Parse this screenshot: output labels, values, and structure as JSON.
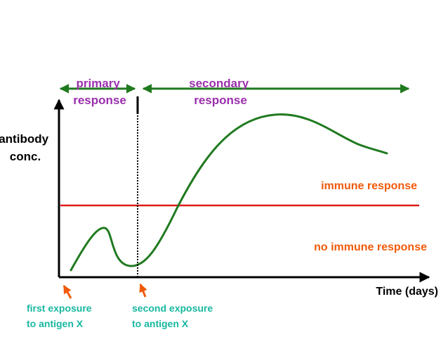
{
  "colors": {
    "background": "#ffffff",
    "axis": "#000000",
    "curve": "#1f7a1f",
    "threshold": "#e01a1a",
    "phase_label": "#9b2fae",
    "phase_arrow": "#1f7a1f",
    "zone_label": "#f05a0a",
    "annotation_label": "#18b8a0",
    "annotation_arrow": "#f05a0a",
    "exposure_marker": "#000000"
  },
  "labels": {
    "y_axis": [
      "antibody",
      "conc."
    ],
    "x_axis": "Time (days)",
    "primary_response": [
      "primary",
      "response"
    ],
    "secondary_response": [
      "secondary",
      "response"
    ],
    "immune_response": "immune response",
    "no_immune_response": "no immune response",
    "first_exposure": [
      "first exposure",
      "to antigen X"
    ],
    "second_exposure": [
      "second exposure",
      "to antigen X"
    ]
  },
  "icons": {
    "phase_arrows": "double-headed-arrow",
    "exposure_arrows": "up-arrow",
    "exposure_marker": "dotted-vertical-line"
  }
}
